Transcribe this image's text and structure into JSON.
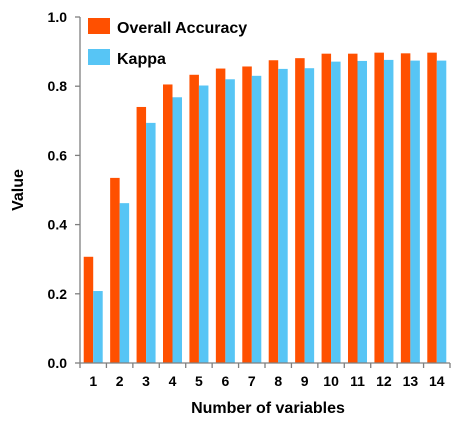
{
  "chart_data": {
    "type": "bar",
    "title": "",
    "xlabel": "Number of variables",
    "ylabel": "Value",
    "ylim": [
      0,
      1.0
    ],
    "yticks": [
      "0.0",
      "0.2",
      "0.4",
      "0.6",
      "0.8",
      "1.0"
    ],
    "grid": false,
    "legend_position": "top-left",
    "categories": [
      "1",
      "2",
      "3",
      "4",
      "5",
      "6",
      "7",
      "8",
      "9",
      "10",
      "11",
      "12",
      "13",
      "14"
    ],
    "series": [
      {
        "name": "Overall Accuracy",
        "color": "#ff5000",
        "values": [
          0.307,
          0.535,
          0.74,
          0.805,
          0.833,
          0.851,
          0.857,
          0.875,
          0.881,
          0.894,
          0.894,
          0.897,
          0.895,
          0.897
        ]
      },
      {
        "name": "Kappa",
        "color": "#57c5f5",
        "values": [
          0.208,
          0.462,
          0.694,
          0.768,
          0.802,
          0.82,
          0.83,
          0.85,
          0.852,
          0.871,
          0.873,
          0.876,
          0.874,
          0.874
        ]
      }
    ]
  }
}
